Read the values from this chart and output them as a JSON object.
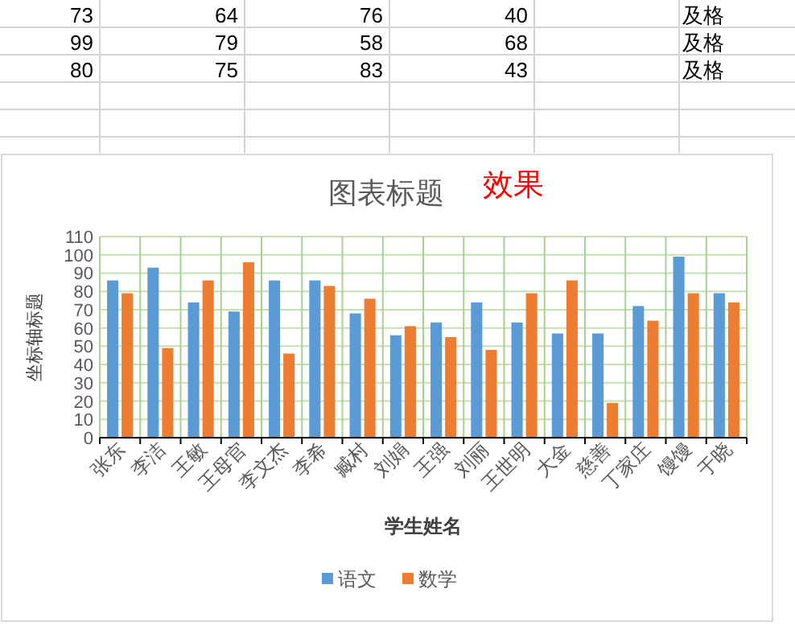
{
  "chart_data": {
    "type": "bar",
    "title": "图表标题",
    "xlabel": "学生姓名",
    "ylabel": "坐标轴标题",
    "categories": [
      "张东",
      "李洁",
      "王敏",
      "王母官",
      "李文杰",
      "李希",
      "臧村",
      "刘娟",
      "王强",
      "刘丽",
      "王世明",
      "大金",
      "慈善",
      "丁家庄",
      "馒馒",
      "于晓"
    ],
    "series": [
      {
        "name": "语文",
        "color": "#5b9bd5",
        "values": [
          86,
          93,
          74,
          69,
          86,
          86,
          68,
          56,
          63,
          74,
          63,
          57,
          57,
          72,
          99,
          79
        ]
      },
      {
        "name": "数学",
        "color": "#ed7d31",
        "values": [
          79,
          49,
          86,
          96,
          46,
          83,
          76,
          61,
          55,
          48,
          79,
          86,
          19,
          64,
          79,
          74
        ]
      }
    ],
    "ylim": [
      0,
      110
    ],
    "yticks": [
      0,
      10,
      20,
      30,
      40,
      50,
      60,
      70,
      80,
      90,
      100,
      110
    ],
    "grid": true,
    "legend": "bottom",
    "annotations": [
      "效果",
      "73",
      "64",
      "76",
      "40",
      "及格",
      "99",
      "79",
      "58",
      "68",
      "及格",
      "80",
      "75",
      "83",
      "43",
      "及格"
    ]
  }
}
